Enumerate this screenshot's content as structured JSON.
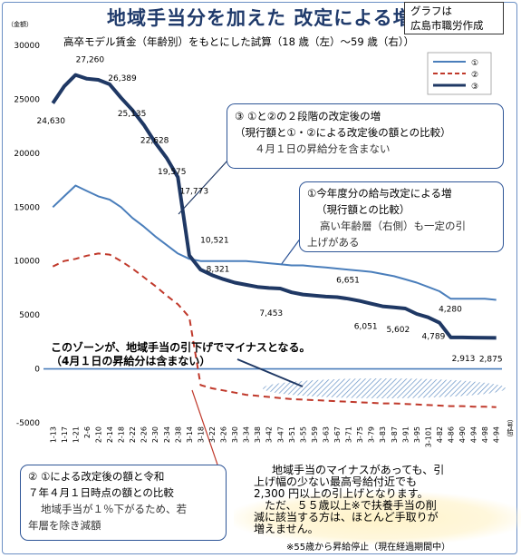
{
  "header": {
    "title": "地域手当分を加えた 改定による増減",
    "source_line1": "グラフは",
    "source_line2": "広島市職労作成",
    "subtitle": "高卒モデル賃金（年齢別）をもとにした試算（18 歳（左）～59 歳（右））",
    "unit_left": "（金額）",
    "unit_right": "（号給）"
  },
  "callouts": {
    "c3": {
      "line1": "③ ①と②の２段階の改定後の増",
      "line2": "（現行額と①・②による改定後の額との比較）",
      "line3": "４月１日の昇給分を含まない"
    },
    "c1": {
      "line1": "①今年度分の給与改定による増",
      "line2": "（現行額との比較）",
      "line3": "高い年齢層（右側）も一定の引",
      "line4": "上げがある"
    },
    "c2": {
      "line1": "② ①による改定後の額と令和",
      "line2": "７年４月１日時点の額との比較",
      "line3": "地域手当が１％下がるため、若",
      "line4": "年層を除き減額"
    }
  },
  "zone_note": {
    "line1": "このゾーンが、地域手当の引下げでマイナスとなる。",
    "line2": "（4月１日の昇給分は含まない）"
  },
  "bottom_note": {
    "line1": "地域手当のマイナスがあっても、引",
    "line2": "上げ幅の少ない最高号給付近でも",
    "line3": "2,300 円以上の引上げとなります。",
    "line4": "ただ、５５歳以上※で扶養手当の削",
    "line5": "減に該当する方は、ほとんど手取りが",
    "line6": "増えません。",
    "footnote": "※55歳から昇給停止（現在経過期間中）"
  },
  "colors": {
    "series1": "#4a7ebb",
    "series2": "#c0392b",
    "series3": "#1f3864",
    "zero_line": "#4a7ebb",
    "hatch": "#4a7ebb"
  },
  "chart_data": {
    "type": "line",
    "ylim": [
      -5000,
      30000
    ],
    "yticks": [
      30000,
      25000,
      20000,
      15000,
      10000,
      5000,
      0,
      -5000
    ],
    "ytick_labels": [
      "30000",
      "25000",
      "20000",
      "15000",
      "10000",
      "5000",
      "0",
      "-5000"
    ],
    "x_labels": [
      "1-13",
      "1-17",
      "1-21",
      "2-6",
      "2-10",
      "2-14",
      "2-18",
      "2-22",
      "2-26",
      "2-30",
      "2-34",
      "2-38",
      "3-14",
      "3-18",
      "3-22",
      "3-26",
      "3-30",
      "3-34",
      "3-38",
      "3-42",
      "3-47",
      "3-51",
      "3-55",
      "3-59",
      "3-63",
      "3-67",
      "3-71",
      "3-75",
      "3-79",
      "3-83",
      "3-87",
      "3-91",
      "3-95",
      "3-101",
      "4-82",
      "4-86",
      "4-90",
      "4-94",
      "4-98",
      "4-94"
    ],
    "legend": [
      "①",
      "②",
      "③"
    ],
    "legend_position": "top-right",
    "series": [
      {
        "name": "①",
        "style": "solid",
        "values": [
          15000,
          16000,
          17000,
          16500,
          16000,
          15700,
          15000,
          14000,
          13200,
          12300,
          11500,
          10700,
          10200,
          10000,
          10000,
          10000,
          10000,
          10000,
          9900,
          9800,
          9700,
          9600,
          9600,
          9500,
          9400,
          9300,
          9200,
          9100,
          9000,
          8800,
          8600,
          8300,
          8000,
          7600,
          7200,
          6500,
          6500,
          6500,
          6500,
          6400
        ]
      },
      {
        "name": "②",
        "style": "dashed",
        "values": [
          9500,
          10000,
          10200,
          10500,
          10700,
          10600,
          10000,
          9300,
          8500,
          7700,
          6800,
          6000,
          4800,
          -1500,
          -1800,
          -2000,
          -2200,
          -2400,
          -2500,
          -2600,
          -2700,
          -2800,
          -2850,
          -2900,
          -2950,
          -3000,
          -3050,
          -3100,
          -3150,
          -3200,
          -3200,
          -3250,
          -3300,
          -3350,
          -3400,
          -3450,
          -3450,
          -3500,
          -3500,
          -3550
        ]
      },
      {
        "name": "③",
        "style": "solid-bold",
        "values": [
          24630,
          26200,
          27260,
          26900,
          26800,
          26389,
          25135,
          24000,
          22628,
          21000,
          19575,
          17773,
          10521,
          9200,
          8700,
          8321,
          8000,
          7800,
          7600,
          7500,
          7453,
          7100,
          6900,
          6800,
          6700,
          6651,
          6500,
          6300,
          6051,
          5800,
          5700,
          5602,
          5100,
          4789,
          4280,
          2913,
          2913,
          2900,
          2880,
          2875
        ]
      }
    ],
    "data_labels": [
      {
        "series": "③",
        "index": 0,
        "text": "24,630"
      },
      {
        "series": "③",
        "index": 2,
        "text": "27,260"
      },
      {
        "series": "③",
        "index": 5,
        "text": "26,389"
      },
      {
        "series": "③",
        "index": 6,
        "text": "25,135"
      },
      {
        "series": "③",
        "index": 8,
        "text": "22,628"
      },
      {
        "series": "③",
        "index": 10,
        "text": "19,575"
      },
      {
        "series": "③",
        "index": 11,
        "text": "17,773"
      },
      {
        "series": "③",
        "index": 12,
        "text": "10,521"
      },
      {
        "series": "③",
        "index": 15,
        "text": "8,321"
      },
      {
        "series": "③",
        "index": 20,
        "text": "7,453"
      },
      {
        "series": "③",
        "index": 25,
        "text": "6,651"
      },
      {
        "series": "③",
        "index": 28,
        "text": "6,051"
      },
      {
        "series": "③",
        "index": 31,
        "text": "5,602"
      },
      {
        "series": "③",
        "index": 33,
        "text": "4,789"
      },
      {
        "series": "③",
        "index": 34,
        "text": "4,280"
      },
      {
        "series": "③",
        "index": 35,
        "text": "2,913"
      },
      {
        "series": "③",
        "index": 39,
        "text": "2,875"
      }
    ]
  }
}
